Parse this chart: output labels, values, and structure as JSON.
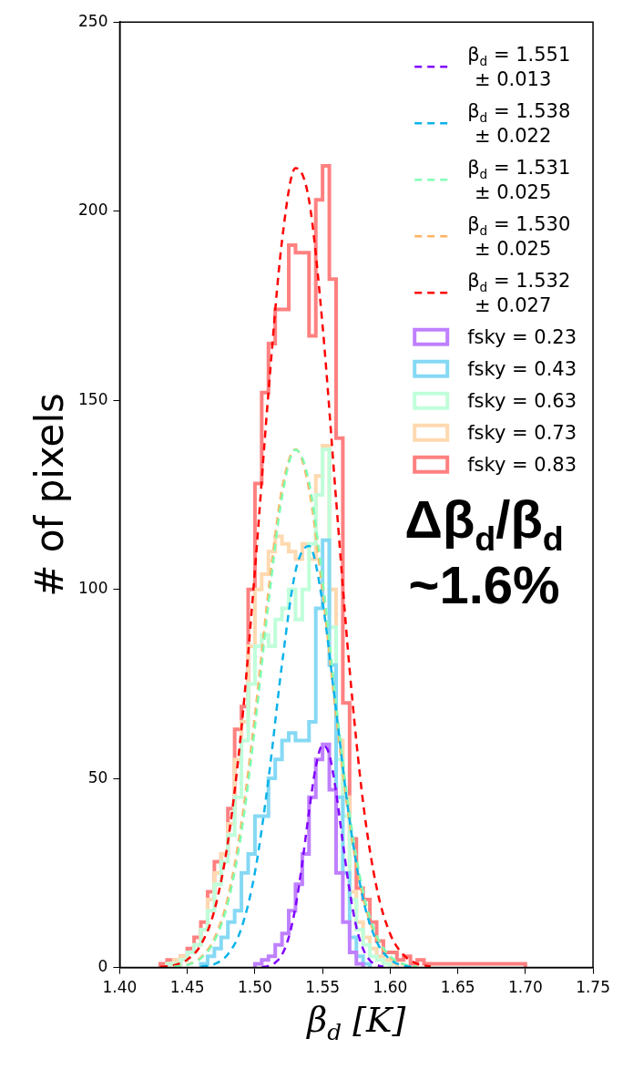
{
  "chart_data": {
    "type": "histogram",
    "xlabel": "β$_{d}$ [K]",
    "ylabel": "# of pixels",
    "annotations": [
      "Δβ$_{d}$/β$_{d}$",
      "~1.6%"
    ],
    "xlim": [
      1.4,
      1.75
    ],
    "xticks": [
      {
        "value": 1.4,
        "label": "1.40"
      },
      {
        "value": 1.45,
        "label": "1.45"
      },
      {
        "value": 1.5,
        "label": "1.50"
      },
      {
        "value": 1.55,
        "label": "1.55"
      },
      {
        "value": 1.6,
        "label": "1.60"
      },
      {
        "value": 1.65,
        "label": "1.65"
      },
      {
        "value": 1.7,
        "label": "1.70"
      },
      {
        "value": 1.75,
        "label": "1.75"
      }
    ],
    "ylim": [
      0,
      250
    ],
    "yticks": [
      0,
      50,
      100,
      150,
      200,
      250
    ],
    "grid": false,
    "legend": "top right",
    "marker": "none",
    "bins": [
      1.43,
      1.435,
      1.44,
      1.445,
      1.45,
      1.455,
      1.46,
      1.465,
      1.47,
      1.475,
      1.48,
      1.485,
      1.49,
      1.495,
      1.5,
      1.505,
      1.51,
      1.515,
      1.52,
      1.525,
      1.53,
      1.535,
      1.54,
      1.545,
      1.55,
      1.555,
      1.56,
      1.565,
      1.57,
      1.575,
      1.58,
      1.585,
      1.59,
      1.595,
      1.6,
      1.605,
      1.61,
      1.615,
      1.62,
      1.625,
      1.63,
      1.635,
      1.64,
      1.645,
      1.65,
      1.655,
      1.66,
      1.665,
      1.67,
      1.675,
      1.68,
      1.685,
      1.69,
      1.695,
      1.7
    ],
    "series": [
      {
        "type": "line",
        "name": "β$_{d}$ = 1.551\n± 0.013",
        "color": "#8000ff",
        "line_style": "dashed",
        "x": [
          1.505,
          1.51,
          1.515,
          1.52,
          1.525,
          1.53,
          1.535,
          1.54,
          1.545,
          1.55,
          1.555,
          1.56,
          1.565,
          1.57,
          1.575,
          1.58,
          1.585,
          1.59,
          1.595
        ],
        "values": [
          0.1,
          0.4,
          1.3,
          3.4,
          8.0,
          16.0,
          27.7,
          41.2,
          53.1,
          58.8,
          56.3,
          46.4,
          33.0,
          20.3,
          10.7,
          4.9,
          1.9,
          0.7,
          0.2
        ]
      },
      {
        "type": "line",
        "name": "β$_{d}$ = 1.538\n± 0.022",
        "color": "#0ab3ea",
        "line_style": "dashed",
        "x": [
          1.46,
          1.47,
          1.48,
          1.49,
          1.5,
          1.51,
          1.52,
          1.53,
          1.54,
          1.55,
          1.56,
          1.57,
          1.58,
          1.59,
          1.6,
          1.61,
          1.62
        ],
        "values": [
          0.2,
          0.9,
          3.5,
          10.4,
          25.2,
          49.8,
          80.2,
          104.8,
          111.5,
          96.5,
          68.0,
          38.9,
          18.1,
          6.9,
          2.1,
          0.5,
          0.1
        ]
      },
      {
        "type": "line",
        "name": "β$_{d}$ = 1.531\n± 0.025",
        "color": "#80ffb4",
        "line_style": "dashed",
        "x": [
          1.44,
          1.45,
          1.46,
          1.47,
          1.48,
          1.49,
          1.5,
          1.51,
          1.52,
          1.53,
          1.54,
          1.55,
          1.56,
          1.57,
          1.58,
          1.59,
          1.6,
          1.61,
          1.62
        ],
        "values": [
          0.2,
          0.7,
          2.4,
          7.0,
          17.1,
          35.7,
          63.5,
          96.3,
          124.4,
          136.9,
          128.4,
          102.6,
          69.9,
          40.6,
          20.0,
          8.5,
          3.0,
          0.9,
          0.2
        ]
      },
      {
        "type": "line",
        "name": "β$_{d}$ = 1.530\n± 0.025",
        "color": "#ffb360",
        "line_style": "dashed",
        "x": [
          1.44,
          1.45,
          1.46,
          1.47,
          1.48,
          1.49,
          1.5,
          1.51,
          1.52,
          1.53,
          1.54,
          1.55,
          1.56,
          1.57,
          1.58,
          1.59,
          1.6,
          1.61,
          1.62
        ],
        "values": [
          0.2,
          0.8,
          2.7,
          7.7,
          18.5,
          38.1,
          66.7,
          99.5,
          126.5,
          137.0,
          126.5,
          99.5,
          66.7,
          38.1,
          18.5,
          7.7,
          2.7,
          0.8,
          0.2
        ]
      },
      {
        "type": "line",
        "name": "β$_{d}$ = 1.532\n± 0.027",
        "color": "#ff0000",
        "line_style": "dashed",
        "x": [
          1.43,
          1.44,
          1.45,
          1.46,
          1.47,
          1.48,
          1.49,
          1.5,
          1.51,
          1.52,
          1.53,
          1.54,
          1.55,
          1.56,
          1.57,
          1.58,
          1.59,
          1.6,
          1.61,
          1.62,
          1.63
        ],
        "values": [
          0.2,
          0.6,
          2.1,
          6.0,
          15.1,
          33.2,
          63.2,
          105.1,
          152.1,
          192.1,
          211.4,
          202.9,
          169.8,
          123.8,
          78.8,
          43.6,
          21.1,
          8.9,
          3.3,
          1.0,
          0.3
        ]
      },
      {
        "name": "fsky = 0.23",
        "color": "#bf80ff",
        "bins": [
          1.5,
          1.505,
          1.51,
          1.515,
          1.52,
          1.525,
          1.53,
          1.535,
          1.54,
          1.545,
          1.55,
          1.555,
          1.56,
          1.565,
          1.57,
          1.575,
          1.58
        ],
        "values": [
          1,
          2,
          3,
          6,
          9,
          15,
          22,
          30,
          45,
          55,
          59,
          47,
          25,
          12,
          4,
          1
        ]
      },
      {
        "name": "fsky = 0.43",
        "color": "#85d9f4",
        "bins": [
          1.46,
          1.465,
          1.47,
          1.475,
          1.48,
          1.485,
          1.49,
          1.495,
          1.5,
          1.505,
          1.51,
          1.515,
          1.52,
          1.525,
          1.53,
          1.535,
          1.54,
          1.545,
          1.55,
          1.555,
          1.56,
          1.565,
          1.57,
          1.575,
          1.58,
          1.585
        ],
        "values": [
          1,
          3,
          5,
          8,
          12,
          15,
          25,
          30,
          40,
          40,
          50,
          55,
          60,
          62,
          60,
          60,
          65,
          95,
          113,
          80,
          45,
          25,
          8,
          3,
          1
        ]
      },
      {
        "name": "fsky = 0.63",
        "color": "#c0ffda",
        "bins": [
          1.435,
          1.44,
          1.445,
          1.45,
          1.455,
          1.46,
          1.465,
          1.47,
          1.475,
          1.48,
          1.485,
          1.49,
          1.495,
          1.5,
          1.505,
          1.51,
          1.515,
          1.52,
          1.525,
          1.53,
          1.535,
          1.54,
          1.545,
          1.55,
          1.555,
          1.56,
          1.565,
          1.57,
          1.575,
          1.58,
          1.585,
          1.59,
          1.595,
          1.6
        ],
        "values": [
          1,
          1,
          2,
          4,
          6,
          10,
          15,
          22,
          28,
          35,
          45,
          60,
          75,
          85,
          88,
          85,
          92,
          95,
          100,
          92,
          100,
          112,
          125,
          137,
          90,
          55,
          40,
          18,
          10,
          6,
          3,
          2,
          1
        ]
      },
      {
        "name": "fsky = 0.73",
        "color": "#ffd9b0",
        "bins": [
          1.435,
          1.44,
          1.445,
          1.45,
          1.455,
          1.46,
          1.465,
          1.47,
          1.475,
          1.48,
          1.485,
          1.49,
          1.495,
          1.5,
          1.505,
          1.51,
          1.515,
          1.52,
          1.525,
          1.53,
          1.535,
          1.54,
          1.545,
          1.55,
          1.555,
          1.56,
          1.565,
          1.57,
          1.575,
          1.58,
          1.585,
          1.59,
          1.595,
          1.6,
          1.605
        ],
        "values": [
          1,
          2,
          3,
          4,
          6,
          10,
          18,
          25,
          30,
          38,
          55,
          65,
          85,
          100,
          104,
          110,
          114,
          112,
          110,
          108,
          112,
          108,
          130,
          138,
          100,
          60,
          45,
          20,
          12,
          8,
          5,
          3,
          2,
          1
        ]
      },
      {
        "name": "fsky = 0.83",
        "color": "#ff8080",
        "values": [
          1,
          2,
          1,
          3,
          5,
          8,
          12,
          20,
          28,
          30,
          42,
          63,
          69,
          100,
          128,
          152,
          165,
          174,
          174,
          191,
          189,
          189,
          167,
          203,
          212,
          182,
          140,
          70,
          34,
          21,
          18,
          12,
          7,
          4,
          4,
          2,
          3,
          1,
          2,
          1,
          1,
          1,
          1,
          1,
          1,
          1,
          1,
          1,
          1,
          1,
          1,
          1,
          1,
          1
        ]
      }
    ]
  }
}
